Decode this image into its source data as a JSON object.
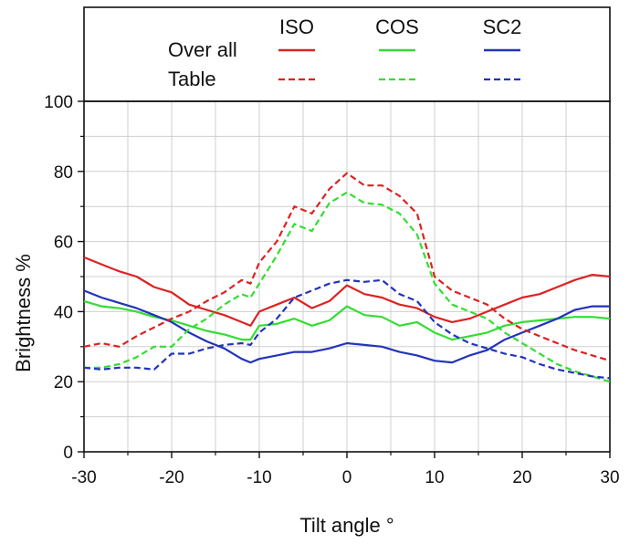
{
  "chart_data": {
    "type": "line",
    "xlabel": "Tilt angle °",
    "ylabel": "Brightness %",
    "xlim": [
      -30,
      30
    ],
    "ylim": [
      0,
      100
    ],
    "xticks": [
      -30,
      -20,
      -10,
      0,
      10,
      20,
      30
    ],
    "yticks": [
      0,
      20,
      40,
      60,
      80,
      100
    ],
    "xtick_labels": [
      "-30",
      "-20",
      "-10",
      "0",
      "10",
      "20",
      "30"
    ],
    "ytick_labels": [
      "0",
      "20",
      "40",
      "60",
      "80",
      "100"
    ],
    "grid": true,
    "legend": {
      "position": "top",
      "columns": [
        "ISO",
        "COS",
        "SC2"
      ],
      "rows": [
        "Over all",
        "Table"
      ]
    },
    "colors": {
      "ISO": "#dd2222",
      "COS": "#33dd33",
      "SC2": "#2233bb"
    },
    "series": [
      {
        "group": "ISO",
        "style": "solid",
        "color": "#dd2222",
        "x": [
          -30,
          -28,
          -26,
          -24,
          -22,
          -20,
          -18,
          -16,
          -14,
          -12,
          -11,
          -10,
          -8,
          -6,
          -4,
          -2,
          0,
          2,
          4,
          6,
          8,
          10,
          12,
          14,
          16,
          18,
          20,
          22,
          24,
          26,
          28,
          30
        ],
        "y": [
          55.5,
          53.5,
          51.5,
          50,
          47,
          45.5,
          42,
          40.5,
          39,
          37,
          36,
          40,
          42,
          44,
          41,
          43,
          47.5,
          45,
          44,
          42,
          41,
          38.5,
          37,
          38,
          40,
          42,
          44,
          45,
          47,
          49,
          50.5,
          50
        ]
      },
      {
        "group": "COS",
        "style": "solid",
        "color": "#33dd33",
        "x": [
          -30,
          -28,
          -26,
          -24,
          -22,
          -20,
          -18,
          -16,
          -14,
          -12,
          -11,
          -10,
          -8,
          -6,
          -4,
          -2,
          0,
          2,
          4,
          6,
          8,
          10,
          12,
          14,
          16,
          18,
          20,
          22,
          24,
          26,
          28,
          30
        ],
        "y": [
          43,
          41.5,
          41,
          40,
          38.5,
          37.5,
          36,
          34.5,
          33.5,
          32,
          32,
          36,
          36.5,
          38,
          36,
          37.5,
          41.5,
          39,
          38.5,
          36,
          37,
          34,
          32,
          33,
          34,
          36,
          37,
          37.5,
          38,
          38.5,
          38.5,
          38
        ]
      },
      {
        "group": "SC2",
        "style": "solid",
        "color": "#2233bb",
        "x": [
          -30,
          -28,
          -26,
          -24,
          -22,
          -20,
          -18,
          -16,
          -14,
          -12,
          -11,
          -10,
          -8,
          -6,
          -4,
          -2,
          0,
          2,
          4,
          6,
          8,
          10,
          12,
          14,
          16,
          18,
          20,
          22,
          24,
          26,
          28,
          30
        ],
        "y": [
          46,
          44,
          42.5,
          41,
          39,
          37,
          34,
          31.5,
          29.5,
          26.5,
          25.5,
          26.5,
          27.5,
          28.5,
          28.5,
          29.5,
          31,
          30.5,
          30,
          28.5,
          27.5,
          26,
          25.5,
          27.5,
          29,
          32,
          34,
          36,
          38,
          40.5,
          41.5,
          41.5
        ]
      },
      {
        "group": "ISO",
        "style": "dashed",
        "color": "#dd2222",
        "x": [
          -30,
          -28,
          -26,
          -24,
          -22,
          -20,
          -18,
          -16,
          -14,
          -12,
          -11,
          -10,
          -8,
          -6,
          -4,
          -2,
          0,
          2,
          4,
          6,
          8,
          10,
          12,
          14,
          16,
          18,
          20,
          22,
          24,
          26,
          28,
          30
        ],
        "y": [
          30,
          31,
          30,
          33,
          35.5,
          38,
          40,
          43,
          45.5,
          49,
          48,
          54,
          60,
          70,
          68,
          75,
          79.5,
          76,
          76,
          73,
          68,
          50,
          46,
          44,
          42,
          38,
          35,
          33,
          31,
          29,
          27.5,
          26
        ]
      },
      {
        "group": "COS",
        "style": "dashed",
        "color": "#33dd33",
        "x": [
          -30,
          -28,
          -26,
          -24,
          -22,
          -20,
          -18,
          -16,
          -14,
          -12,
          -11,
          -10,
          -8,
          -6,
          -4,
          -2,
          0,
          2,
          4,
          6,
          8,
          10,
          12,
          14,
          16,
          18,
          20,
          22,
          24,
          26,
          28,
          30
        ],
        "y": [
          24,
          24,
          25,
          27,
          30,
          30,
          35,
          38,
          42,
          45,
          44,
          48,
          56,
          65,
          63,
          71,
          74,
          71,
          70.5,
          68,
          62,
          48,
          42,
          40,
          38,
          34,
          31,
          28,
          25,
          23,
          21.5,
          20
        ]
      },
      {
        "group": "SC2",
        "style": "dashed",
        "color": "#2233bb",
        "x": [
          -30,
          -28,
          -26,
          -24,
          -22,
          -20,
          -18,
          -16,
          -14,
          -12,
          -11,
          -10,
          -8,
          -6,
          -4,
          -2,
          0,
          2,
          4,
          6,
          8,
          10,
          12,
          14,
          16,
          18,
          20,
          22,
          24,
          26,
          28,
          30
        ],
        "y": [
          24,
          23.5,
          24,
          24,
          23.5,
          28,
          28,
          29.5,
          30.5,
          31,
          30.5,
          34,
          38,
          44,
          46,
          48,
          49,
          48.5,
          49,
          45,
          43,
          37,
          33.5,
          31,
          29.5,
          28,
          27,
          25,
          23.5,
          22.5,
          21.5,
          21
        ]
      }
    ]
  }
}
